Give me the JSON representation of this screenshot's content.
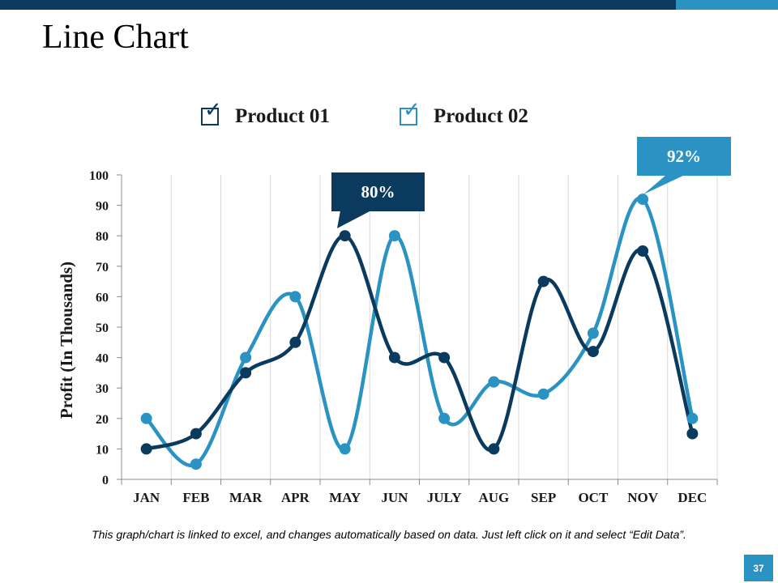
{
  "slide": {
    "title": "Line Chart",
    "footnote": "This graph/chart is linked to excel, and changes automatically based on data. Just left click on it and select “Edit Data”.",
    "page_number": "37"
  },
  "colors": {
    "dark": "#0a3a5e",
    "light": "#2a93c3"
  },
  "legend": {
    "product1_label": "Product 01",
    "product2_label": "Product 02",
    "check_glyph": "✓"
  },
  "callouts": {
    "product1_peak": "80%",
    "product2_peak": "92%"
  },
  "chart_data": {
    "type": "line",
    "categories": [
      "JAN",
      "FEB",
      "MAR",
      "APR",
      "MAY",
      "JUN",
      "JULY",
      "AUG",
      "SEP",
      "OCT",
      "NOV",
      "DEC"
    ],
    "series": [
      {
        "name": "Product 01",
        "color": "#0a3a5e",
        "values": [
          10,
          15,
          35,
          45,
          80,
          40,
          40,
          10,
          65,
          42,
          75,
          15
        ]
      },
      {
        "name": "Product 02",
        "color": "#2a93c3",
        "values": [
          20,
          5,
          40,
          60,
          10,
          80,
          20,
          32,
          28,
          48,
          92,
          20
        ]
      }
    ],
    "ylabel": "Profit (In Thousands)",
    "xlabel": "",
    "ylim": [
      0,
      100
    ],
    "yticks": [
      0,
      10,
      20,
      30,
      40,
      50,
      60,
      70,
      80,
      90,
      100
    ],
    "grid": "vertical"
  }
}
